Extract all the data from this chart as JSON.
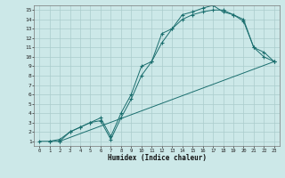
{
  "xlabel": "Humidex (Indice chaleur)",
  "bg_color": "#cce8e8",
  "grid_color": "#aacccc",
  "line_color": "#1a6e6e",
  "xlim": [
    -0.5,
    23.5
  ],
  "ylim": [
    0.5,
    15.5
  ],
  "xticks": [
    0,
    1,
    2,
    3,
    4,
    5,
    6,
    7,
    8,
    9,
    10,
    11,
    12,
    13,
    14,
    15,
    16,
    17,
    18,
    19,
    20,
    21,
    22,
    23
  ],
  "yticks": [
    1,
    2,
    3,
    4,
    5,
    6,
    7,
    8,
    9,
    10,
    11,
    12,
    13,
    14,
    15
  ],
  "line1_x": [
    0,
    1,
    2,
    23
  ],
  "line1_y": [
    1,
    1,
    1,
    9.5
  ],
  "line2_x": [
    1,
    2,
    3,
    4,
    5,
    6,
    7,
    8,
    9,
    10,
    11,
    12,
    13,
    14,
    15,
    16,
    17,
    18,
    19,
    20,
    21,
    22,
    23
  ],
  "line2_y": [
    1,
    1.2,
    2,
    2.5,
    3,
    3.2,
    1.2,
    3.5,
    5.5,
    8,
    9.5,
    11.5,
    13,
    14,
    14.5,
    14.8,
    15,
    15,
    14.5,
    13.8,
    11,
    10,
    9.5
  ],
  "line3_x": [
    2,
    3,
    4,
    5,
    6,
    7,
    8,
    9,
    10,
    11,
    12,
    13,
    14,
    15,
    16,
    17,
    18,
    19,
    20,
    21,
    22,
    23
  ],
  "line3_y": [
    1,
    2,
    2.5,
    3,
    3.5,
    1.5,
    4,
    6,
    9,
    9.5,
    12.5,
    13,
    14.5,
    14.8,
    15.2,
    15.5,
    14.8,
    14.5,
    14,
    11,
    10.5,
    9.5
  ]
}
